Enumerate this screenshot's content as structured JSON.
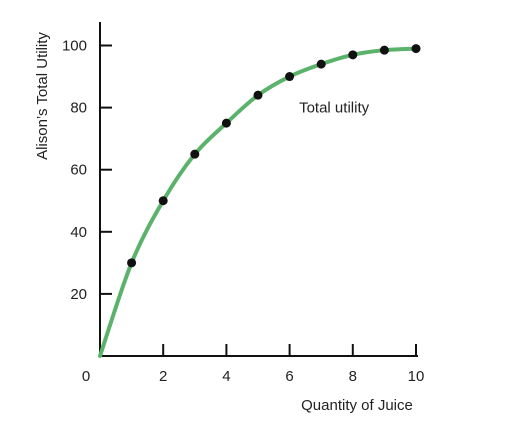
{
  "chart_data": {
    "type": "line",
    "title": "",
    "xlabel": "Quantity of Juice",
    "ylabel": "Alison’s Total Utility",
    "xlim": [
      0,
      10
    ],
    "ylim": [
      0,
      100
    ],
    "x_ticks": [
      0,
      2,
      4,
      6,
      8,
      10
    ],
    "y_ticks": [
      20,
      40,
      60,
      80,
      100
    ],
    "grid": false,
    "series": [
      {
        "name": "Total utility",
        "color": "#5bb36b",
        "curve": "smooth",
        "x": [
          0,
          1,
          2,
          3,
          4,
          5,
          6,
          7,
          8,
          9,
          10
        ],
        "y": [
          0,
          30,
          50,
          65,
          75,
          84,
          90,
          94,
          97,
          98.5,
          99
        ]
      }
    ],
    "points": {
      "color": "#111111",
      "x": [
        1,
        2,
        3,
        4,
        5,
        6,
        7,
        8,
        9,
        10
      ],
      "y": [
        30,
        50,
        65,
        75,
        84,
        90,
        94,
        97,
        98.5,
        99
      ]
    },
    "annotations": [
      {
        "text": "Total utility",
        "x": 6.3,
        "y": 80
      }
    ]
  }
}
